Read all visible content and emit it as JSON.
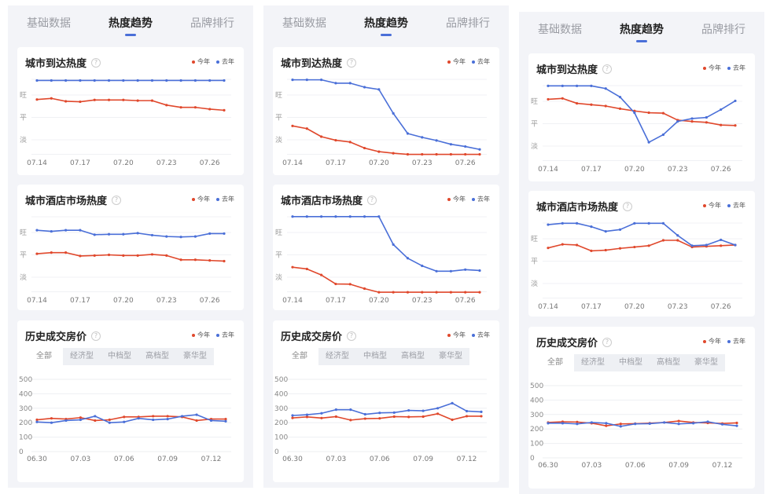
{
  "colors": {
    "this_year": "#e0482c",
    "last_year": "#4a6fd8"
  },
  "tabs": [
    "基础数据",
    "热度趋势",
    "品牌排行"
  ],
  "active_tab": 1,
  "legend": {
    "this_year": "今年",
    "last_year": "去年"
  },
  "help_icon": "?",
  "segments": [
    "全部",
    "经济型",
    "中档型",
    "高档型",
    "豪华型"
  ],
  "heat_levels": [
    "淡",
    "平",
    "旺"
  ],
  "chart_data": [
    {
      "panel": 0,
      "type": "line",
      "title": "城市到达热度",
      "x": [
        "07.14",
        "07.15",
        "07.16",
        "07.17",
        "07.18",
        "07.19",
        "07.20",
        "07.21",
        "07.22",
        "07.23",
        "07.24",
        "07.25",
        "07.26",
        "07.27"
      ],
      "xticks": [
        "07.14",
        "07.17",
        "07.20",
        "07.23",
        "07.26"
      ],
      "ylim": [
        0.3,
        3.75
      ],
      "series": [
        {
          "name": "今年",
          "values": [
            2.8,
            2.85,
            2.72,
            2.7,
            2.78,
            2.78,
            2.78,
            2.75,
            2.75,
            2.55,
            2.45,
            2.45,
            2.37,
            2.32
          ]
        },
        {
          "name": "去年",
          "values": [
            3.65,
            3.65,
            3.65,
            3.65,
            3.65,
            3.65,
            3.65,
            3.65,
            3.65,
            3.65,
            3.65,
            3.65,
            3.65,
            3.65
          ]
        }
      ]
    },
    {
      "panel": 0,
      "type": "line",
      "title": "城市酒店市场热度",
      "x": [
        "07.14",
        "07.15",
        "07.16",
        "07.17",
        "07.18",
        "07.19",
        "07.20",
        "07.21",
        "07.22",
        "07.23",
        "07.24",
        "07.25",
        "07.26",
        "07.27"
      ],
      "xticks": [
        "07.14",
        "07.17",
        "07.20",
        "07.23",
        "07.26"
      ],
      "ylim": [
        0.3,
        3.75
      ],
      "series": [
        {
          "name": "今年",
          "values": [
            2.05,
            2.1,
            2.1,
            1.95,
            1.97,
            2.0,
            1.97,
            1.97,
            2.02,
            1.97,
            1.78,
            1.78,
            1.75,
            1.72
          ]
        },
        {
          "name": "去年",
          "values": [
            3.1,
            3.05,
            3.1,
            3.1,
            2.9,
            2.92,
            2.92,
            2.97,
            2.88,
            2.82,
            2.8,
            2.82,
            2.95,
            2.95
          ]
        }
      ]
    },
    {
      "panel": 0,
      "type": "line",
      "title": "历史成交房价",
      "x": [
        "06.30",
        "07.01",
        "07.02",
        "07.03",
        "07.04",
        "07.05",
        "07.06",
        "07.07",
        "07.08",
        "07.09",
        "07.10",
        "07.11",
        "07.12",
        "07.13"
      ],
      "xticks": [
        "06.30",
        "07.03",
        "07.06",
        "07.09",
        "07.12"
      ],
      "ylim": [
        0,
        500
      ],
      "yticks": [
        0,
        100,
        200,
        300,
        400,
        500
      ],
      "series": [
        {
          "name": "今年",
          "values": [
            220,
            230,
            225,
            235,
            215,
            220,
            240,
            240,
            245,
            245,
            240,
            215,
            225,
            225
          ]
        },
        {
          "name": "去年",
          "values": [
            205,
            200,
            215,
            220,
            245,
            200,
            205,
            230,
            220,
            225,
            245,
            255,
            215,
            210
          ]
        }
      ]
    },
    {
      "panel": 1,
      "type": "line",
      "title": "城市到达热度",
      "x": [
        "07.14",
        "07.15",
        "07.16",
        "07.17",
        "07.18",
        "07.19",
        "07.20",
        "07.21",
        "07.22",
        "07.23",
        "07.24",
        "07.25",
        "07.26",
        "07.27"
      ],
      "xticks": [
        "07.14",
        "07.17",
        "07.20",
        "07.23",
        "07.26"
      ],
      "ylim": [
        0.3,
        3.75
      ],
      "series": [
        {
          "name": "今年",
          "values": [
            1.62,
            1.5,
            1.14,
            0.98,
            0.9,
            0.63,
            0.47,
            0.4,
            0.35,
            0.35,
            0.35,
            0.35,
            0.35,
            0.35
          ]
        },
        {
          "name": "去年",
          "values": [
            3.68,
            3.68,
            3.68,
            3.53,
            3.53,
            3.35,
            3.25,
            2.18,
            1.28,
            1.11,
            0.97,
            0.8,
            0.7,
            0.57
          ]
        }
      ]
    },
    {
      "panel": 1,
      "type": "line",
      "title": "城市酒店市场热度",
      "x": [
        "07.14",
        "07.15",
        "07.16",
        "07.17",
        "07.18",
        "07.19",
        "07.20",
        "07.21",
        "07.22",
        "07.23",
        "07.24",
        "07.25",
        "07.26",
        "07.27"
      ],
      "xticks": [
        "07.14",
        "07.17",
        "07.20",
        "07.23",
        "07.26"
      ],
      "ylim": [
        0.3,
        3.75
      ],
      "series": [
        {
          "name": "今年",
          "values": [
            1.45,
            1.37,
            1.1,
            0.7,
            0.69,
            0.49,
            0.33,
            0.33,
            0.33,
            0.33,
            0.33,
            0.33,
            0.33,
            0.33
          ]
        },
        {
          "name": "去年",
          "values": [
            3.71,
            3.71,
            3.71,
            3.71,
            3.71,
            3.71,
            3.71,
            2.46,
            1.85,
            1.51,
            1.27,
            1.27,
            1.34,
            1.3
          ]
        }
      ]
    },
    {
      "panel": 1,
      "type": "line",
      "title": "历史成交房价",
      "x": [
        "06.30",
        "07.01",
        "07.02",
        "07.03",
        "07.04",
        "07.05",
        "07.06",
        "07.07",
        "07.08",
        "07.09",
        "07.10",
        "07.11",
        "07.12",
        "07.13"
      ],
      "xticks": [
        "06.30",
        "07.03",
        "07.06",
        "07.09",
        "07.12"
      ],
      "ylim": [
        0,
        500
      ],
      "yticks": [
        0,
        100,
        200,
        300,
        400,
        500
      ],
      "series": [
        {
          "name": "今年",
          "values": [
            233,
            240,
            232,
            242,
            218,
            228,
            230,
            242,
            240,
            242,
            262,
            220,
            245,
            245
          ]
        },
        {
          "name": "去年",
          "values": [
            250,
            255,
            265,
            290,
            290,
            258,
            268,
            270,
            285,
            282,
            300,
            335,
            280,
            275
          ]
        }
      ]
    },
    {
      "panel": 2,
      "type": "line",
      "title": "城市到达热度",
      "x": [
        "07.14",
        "07.15",
        "07.16",
        "07.17",
        "07.18",
        "07.19",
        "07.20",
        "07.21",
        "07.22",
        "07.23",
        "07.24",
        "07.25",
        "07.26",
        "07.27"
      ],
      "xticks": [
        "07.14",
        "07.17",
        "07.20",
        "07.23",
        "07.26"
      ],
      "ylim": [
        0.3,
        3.75
      ],
      "series": [
        {
          "name": "今年",
          "values": [
            3.09,
            3.13,
            2.91,
            2.85,
            2.79,
            2.67,
            2.57,
            2.49,
            2.47,
            2.16,
            2.1,
            2.06,
            1.94,
            1.92
          ]
        },
        {
          "name": "去年",
          "values": [
            3.69,
            3.69,
            3.69,
            3.69,
            3.57,
            3.19,
            2.49,
            1.17,
            1.51,
            2.1,
            2.23,
            2.28,
            2.63,
            3.02
          ]
        }
      ]
    },
    {
      "panel": 2,
      "type": "line",
      "title": "城市酒店市场热度",
      "x": [
        "07.14",
        "07.15",
        "07.16",
        "07.17",
        "07.18",
        "07.19",
        "07.20",
        "07.21",
        "07.22",
        "07.23",
        "07.24",
        "07.25",
        "07.26",
        "07.27"
      ],
      "xticks": [
        "07.14",
        "07.17",
        "07.20",
        "07.23",
        "07.26"
      ],
      "ylim": [
        0.3,
        3.75
      ],
      "series": [
        {
          "name": "今年",
          "values": [
            2.59,
            2.75,
            2.72,
            2.46,
            2.49,
            2.57,
            2.63,
            2.69,
            2.93,
            2.93,
            2.63,
            2.66,
            2.69,
            2.72
          ]
        },
        {
          "name": "去年",
          "values": [
            3.63,
            3.69,
            3.69,
            3.54,
            3.33,
            3.41,
            3.69,
            3.69,
            3.69,
            3.15,
            2.69,
            2.72,
            2.95,
            2.72
          ]
        }
      ]
    },
    {
      "panel": 2,
      "type": "line",
      "title": "历史成交房价",
      "x": [
        "06.30",
        "07.01",
        "07.02",
        "07.03",
        "07.04",
        "07.05",
        "07.06",
        "07.07",
        "07.08",
        "07.09",
        "07.10",
        "07.11",
        "07.12",
        "07.13"
      ],
      "xticks": [
        "06.30",
        "07.03",
        "07.06",
        "07.09",
        "07.12"
      ],
      "ylim": [
        0,
        500
      ],
      "yticks": [
        0,
        100,
        200,
        300,
        400,
        500
      ],
      "series": [
        {
          "name": "今年",
          "values": [
            245,
            250,
            248,
            240,
            222,
            235,
            237,
            240,
            245,
            255,
            245,
            242,
            238,
            242
          ]
        },
        {
          "name": "去年",
          "values": [
            240,
            240,
            235,
            245,
            240,
            218,
            235,
            237,
            245,
            235,
            240,
            250,
            232,
            222
          ]
        }
      ]
    }
  ]
}
